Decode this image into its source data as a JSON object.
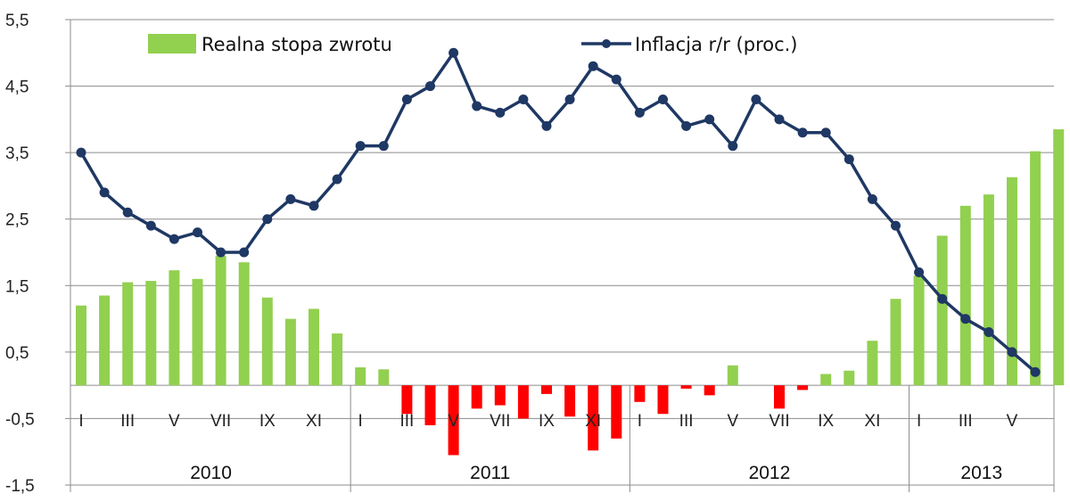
{
  "chart_data": {
    "type": "bar+line",
    "title": "",
    "y_axis": {
      "ticks": [
        "5,5",
        "4,5",
        "3,5",
        "2,5",
        "1,5",
        "0,5",
        "-0,5",
        "-1,5"
      ],
      "ylim": [
        -1.5,
        5.5
      ],
      "gridlines": true
    },
    "legend": {
      "placement": "top"
    },
    "x_month_labels": [
      "I",
      "",
      "III",
      "",
      "V",
      "",
      "VII",
      "",
      "IX",
      "",
      "XI",
      "",
      "I",
      "",
      "III",
      "",
      "V",
      "",
      "VII",
      "",
      "IX",
      "",
      "XI",
      "",
      "I",
      "",
      "III",
      "",
      "V",
      "",
      "VII",
      "",
      "IX",
      "",
      "XI",
      "",
      "I",
      "",
      "III",
      "",
      "V",
      ""
    ],
    "years": [
      {
        "label": "2010",
        "months": 12
      },
      {
        "label": "2011",
        "months": 12
      },
      {
        "label": "2012",
        "months": 12
      },
      {
        "label": "2013",
        "months": 6
      }
    ],
    "series": [
      {
        "name": "Realna stopa zwrotu",
        "kind": "bar",
        "positive_color": "#92d050",
        "negative_color": "#ff0000",
        "values": [
          1.2,
          1.35,
          1.55,
          1.57,
          1.73,
          1.6,
          1.95,
          1.85,
          1.32,
          1.0,
          1.15,
          0.78,
          0.27,
          0.24,
          -0.43,
          -0.6,
          -1.05,
          -0.35,
          -0.3,
          -0.5,
          -0.13,
          -0.47,
          -0.98,
          -0.8,
          -0.25,
          -0.43,
          -0.05,
          -0.15,
          0.3,
          0.0,
          -0.35,
          -0.07,
          0.17,
          0.22,
          0.67,
          1.3,
          1.65,
          2.25,
          2.7,
          2.87,
          3.13,
          3.52
        ]
      },
      {
        "name": "Inflacja r/r (proc.)",
        "kind": "line",
        "color": "#1f3864",
        "values": [
          3.5,
          2.9,
          2.6,
          2.4,
          2.2,
          2.3,
          2.0,
          2.0,
          2.5,
          2.8,
          2.7,
          3.1,
          3.6,
          3.6,
          4.3,
          4.5,
          5.0,
          4.2,
          4.1,
          4.3,
          3.9,
          4.3,
          4.8,
          4.6,
          4.1,
          4.3,
          3.9,
          4.0,
          3.6,
          4.3,
          4.0,
          3.8,
          3.8,
          3.4,
          2.8,
          2.4,
          1.7,
          1.3,
          1.0,
          0.8,
          0.5,
          0.2
        ]
      }
    ],
    "extra_bar_value": 3.85
  }
}
